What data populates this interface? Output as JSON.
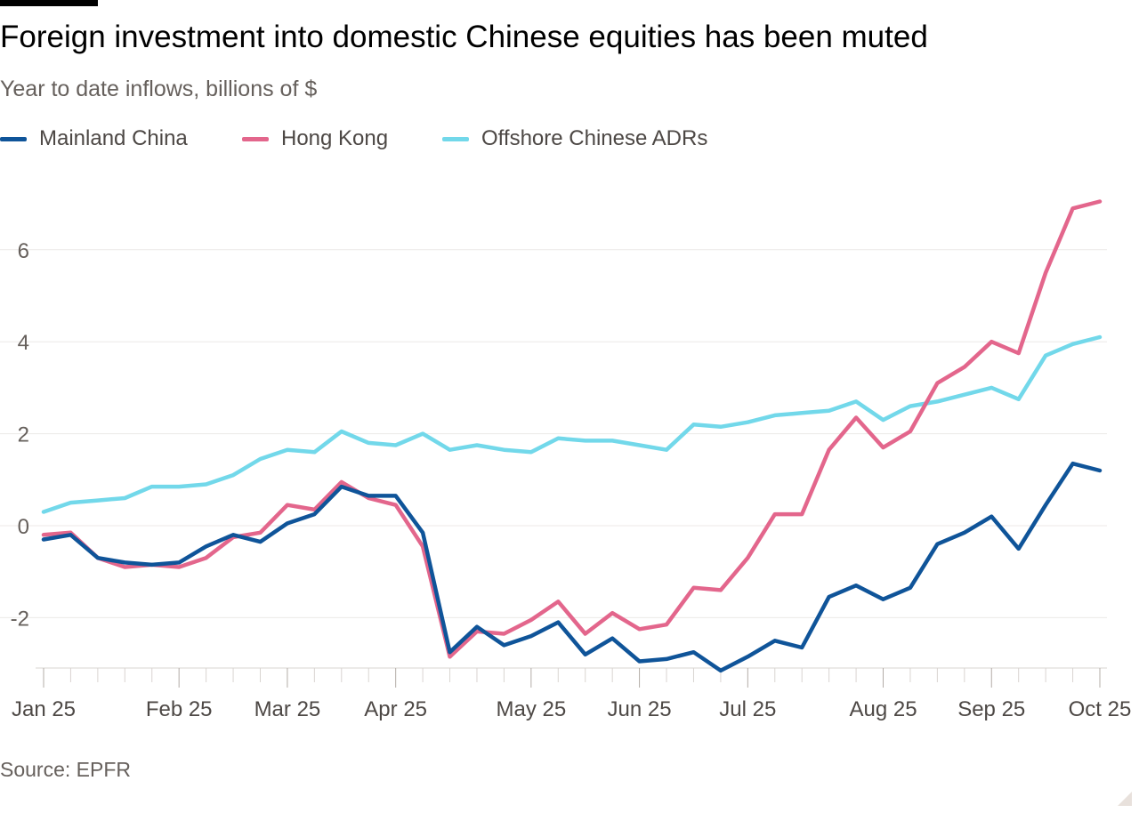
{
  "header": {
    "title": "Foreign investment into domestic Chinese equities has been muted",
    "subtitle": "Year to date inflows, billions of $"
  },
  "footer": {
    "source": "Source: EPFR"
  },
  "chart_data": {
    "type": "line",
    "title": "Foreign investment into domestic Chinese equities has been muted",
    "subtitle": "Year to date inflows, billions of $",
    "xlabel": "",
    "ylabel": "",
    "ylim": [
      -3.1,
      7.1
    ],
    "y_ticks": [
      -2,
      0,
      2,
      4,
      6
    ],
    "y_tick_labels": [
      "-2",
      "0",
      "2",
      "4",
      "6"
    ],
    "x_tick_labels": [
      "Jan 25",
      "Feb 25",
      "Mar 25",
      "Apr 25",
      "May 25",
      "Jun 25",
      "Jul 25",
      "Aug 25",
      "Sep 25",
      "Oct 25"
    ],
    "x_tick_label_index": [
      0,
      5,
      9,
      13,
      18,
      22,
      26,
      31,
      35,
      39
    ],
    "grid": true,
    "legend_position": "top-left",
    "x": [
      "2025-01-01",
      "2025-01-08",
      "2025-01-15",
      "2025-01-22",
      "2025-01-29",
      "2025-02-05",
      "2025-02-12",
      "2025-02-19",
      "2025-02-26",
      "2025-03-05",
      "2025-03-12",
      "2025-03-19",
      "2025-03-26",
      "2025-04-02",
      "2025-04-09",
      "2025-04-16",
      "2025-04-23",
      "2025-04-30",
      "2025-05-07",
      "2025-05-14",
      "2025-05-21",
      "2025-05-28",
      "2025-06-04",
      "2025-06-11",
      "2025-06-18",
      "2025-06-25",
      "2025-07-02",
      "2025-07-09",
      "2025-07-16",
      "2025-07-23",
      "2025-07-30",
      "2025-08-06",
      "2025-08-13",
      "2025-08-20",
      "2025-08-27",
      "2025-09-03",
      "2025-09-10",
      "2025-09-17",
      "2025-09-24",
      "2025-10-01"
    ],
    "series": [
      {
        "name": "Mainland China",
        "color": "#0f5499",
        "values": [
          -0.3,
          -0.2,
          -0.7,
          -0.8,
          -0.85,
          -0.8,
          -0.45,
          -0.2,
          -0.35,
          0.05,
          0.25,
          0.85,
          0.65,
          0.65,
          -0.15,
          -2.75,
          -2.2,
          -2.6,
          -2.4,
          -2.1,
          -2.8,
          -2.45,
          -2.95,
          -2.9,
          -2.75,
          -3.15,
          -2.85,
          -2.5,
          -2.65,
          -1.55,
          -1.3,
          -1.6,
          -1.35,
          -0.4,
          -0.15,
          0.2,
          -0.5,
          0.45,
          1.35,
          1.2
        ]
      },
      {
        "name": "Hong Kong",
        "color": "#e3668c",
        "values": [
          -0.2,
          -0.15,
          -0.7,
          -0.9,
          -0.85,
          -0.9,
          -0.7,
          -0.25,
          -0.15,
          0.45,
          0.35,
          0.95,
          0.6,
          0.45,
          -0.45,
          -2.85,
          -2.3,
          -2.35,
          -2.05,
          -1.65,
          -2.35,
          -1.9,
          -2.25,
          -2.15,
          -1.35,
          -1.4,
          -0.7,
          0.25,
          0.25,
          1.65,
          2.35,
          1.7,
          2.05,
          3.1,
          3.45,
          4.0,
          3.75,
          5.5,
          6.9,
          7.05
        ]
      },
      {
        "name": "Offshore Chinese ADRs",
        "color": "#72d8ea",
        "values": [
          0.3,
          0.5,
          0.55,
          0.6,
          0.85,
          0.85,
          0.9,
          1.1,
          1.45,
          1.65,
          1.6,
          2.05,
          1.8,
          1.75,
          2.0,
          1.65,
          1.75,
          1.65,
          1.6,
          1.9,
          1.85,
          1.85,
          1.75,
          1.65,
          2.2,
          2.15,
          2.25,
          2.4,
          2.45,
          2.5,
          2.7,
          2.3,
          2.6,
          2.7,
          2.85,
          3.0,
          2.75,
          3.7,
          3.95,
          4.1
        ]
      }
    ]
  }
}
